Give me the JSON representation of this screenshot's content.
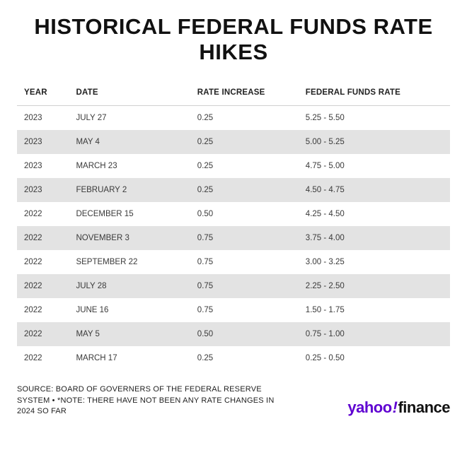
{
  "title": "HISTORICAL FEDERAL FUNDS RATE HIKES",
  "columns": [
    "YEAR",
    "DATE",
    "RATE INCREASE",
    "FEDERAL FUNDS RATE"
  ],
  "rows": [
    [
      "2023",
      "JULY 27",
      "0.25",
      "5.25 - 5.50"
    ],
    [
      "2023",
      "MAY 4",
      "0.25",
      "5.00 - 5.25"
    ],
    [
      "2023",
      "MARCH 23",
      "0.25",
      "4.75 - 5.00"
    ],
    [
      "2023",
      "FEBRUARY 2",
      "0.25",
      "4.50 - 4.75"
    ],
    [
      "2022",
      "DECEMBER 15",
      "0.50",
      "4.25 - 4.50"
    ],
    [
      "2022",
      "NOVEMBER 3",
      "0.75",
      "3.75 - 4.00"
    ],
    [
      "2022",
      "SEPTEMBER 22",
      "0.75",
      "3.00 - 3.25"
    ],
    [
      "2022",
      "JULY 28",
      "0.75",
      "2.25 - 2.50"
    ],
    [
      "2022",
      "JUNE 16",
      "0.75",
      "1.50 - 1.75"
    ],
    [
      "2022",
      "MAY 5",
      "0.50",
      "0.75 - 1.00"
    ],
    [
      "2022",
      "MARCH 17",
      "0.25",
      "0.25 - 0.50"
    ]
  ],
  "source": "SOURCE: BOARD OF GOVERNERS OF THE FEDERAL RESERVE SYSTEM • *NOTE: THERE HAVE NOT BEEN ANY RATE CHANGES IN 2024 SO FAR",
  "brand": {
    "part1": "yahoo",
    "exclaim": "!",
    "part2": "finance"
  },
  "style": {
    "row_odd_bg": "#ffffff",
    "row_even_bg": "#e3e3e3",
    "header_border": "#d0d0d0",
    "brand_purple": "#5f01d1",
    "text_color": "#1a1a1a"
  }
}
